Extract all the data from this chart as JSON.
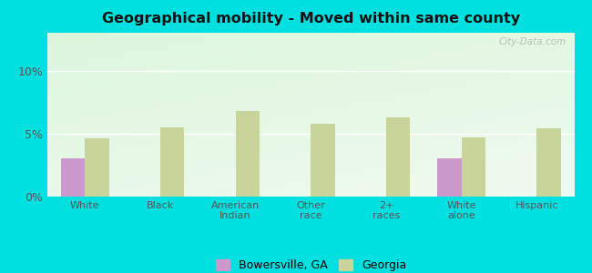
{
  "title": "Geographical mobility - Moved within same county",
  "categories": [
    "White",
    "Black",
    "American\nIndian",
    "Other\nrace",
    "2+\nraces",
    "White\nalone",
    "Hispanic"
  ],
  "bowersville_values": [
    3.0,
    0,
    0,
    0,
    0,
    3.0,
    0
  ],
  "georgia_values": [
    4.6,
    5.5,
    6.8,
    5.8,
    6.3,
    4.7,
    5.4
  ],
  "bowersville_color": "#cc99cc",
  "georgia_color": "#c8d49a",
  "outer_bg": "#00e0e0",
  "title_color": "#111111",
  "ylim": [
    0,
    13
  ],
  "yticks": [
    0,
    5,
    10
  ],
  "ytick_labels": [
    "0%",
    "5%",
    "10%"
  ],
  "legend_bowersville": "Bowersville, GA",
  "legend_georgia": "Georgia",
  "bar_width": 0.32
}
